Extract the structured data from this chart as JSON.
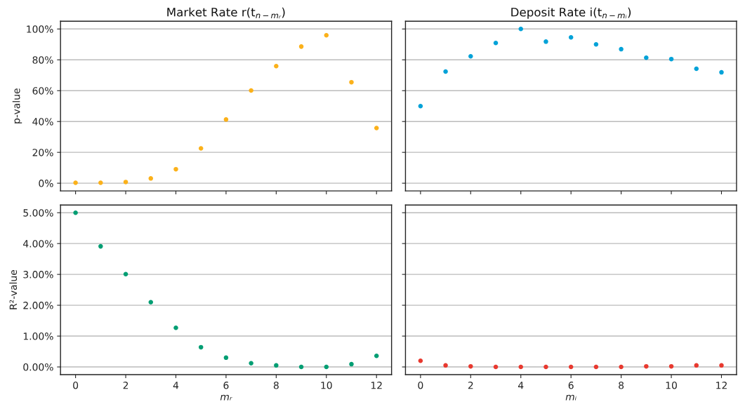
{
  "chart_data": [
    {
      "type": "scatter",
      "title": "Market Rate r(t$_{n−mᵣ}$)",
      "ylabel": "p-value",
      "x": [
        0,
        1,
        2,
        3,
        4,
        5,
        6,
        7,
        8,
        9,
        10,
        11,
        12
      ],
      "values": [
        0.3,
        0.3,
        0.8,
        3.1,
        9.1,
        22.6,
        41.3,
        60.1,
        75.9,
        88.6,
        95.9,
        65.5,
        35.8
      ],
      "color": "#fbb11a",
      "marker": "circle",
      "grid": "y",
      "tick_labels": "y",
      "xlim": [
        -0.6,
        12.6
      ],
      "xticks": [
        0,
        2,
        4,
        6,
        8,
        10,
        12
      ],
      "ylim": [
        -5,
        105
      ],
      "yticks": [
        {
          "value": 0,
          "label": "0%"
        },
        {
          "value": 20,
          "label": "20%"
        },
        {
          "value": 40,
          "label": "40%"
        },
        {
          "value": 60,
          "label": "60%"
        },
        {
          "value": 80,
          "label": "80%"
        },
        {
          "value": 100,
          "label": "100%"
        }
      ]
    },
    {
      "type": "scatter",
      "title": "Deposit Rate i(t$_{n−mᵢ}$)",
      "x": [
        0,
        1,
        2,
        3,
        4,
        5,
        6,
        7,
        8,
        9,
        10,
        11,
        12
      ],
      "values": [
        50.0,
        72.4,
        82.3,
        90.9,
        100,
        91.8,
        94.6,
        90.0,
        86.9,
        81.4,
        80.5,
        74.2,
        71.9
      ],
      "color": "#02a2d8",
      "marker": "circle",
      "grid": "y",
      "tick_labels": false,
      "xlim": [
        -0.6,
        12.6
      ],
      "xticks": [
        0,
        2,
        4,
        6,
        8,
        10,
        12
      ],
      "ylim": [
        -5,
        105
      ],
      "yticks": [
        0,
        20,
        40,
        60,
        80,
        100
      ]
    },
    {
      "type": "scatter",
      "ylabel": "R²-value",
      "xlabel": "mᵣ",
      "x": [
        0,
        1,
        2,
        3,
        4,
        5,
        6,
        7,
        8,
        9,
        10,
        11,
        12
      ],
      "values": [
        5.0,
        3.91,
        3.01,
        2.1,
        1.27,
        0.64,
        0.3,
        0.12,
        0.05,
        0.0,
        0.0,
        0.09,
        0.36
      ],
      "color": "#009e73",
      "marker": "circle",
      "grid": "y",
      "xlim": [
        -0.6,
        12.6
      ],
      "xticks": [
        0,
        2,
        4,
        6,
        8,
        10,
        12
      ],
      "ylim": [
        -0.25,
        5.25
      ],
      "yticks": [
        {
          "value": 0,
          "label": "0.00%"
        },
        {
          "value": 1,
          "label": "1.00%"
        },
        {
          "value": 2,
          "label": "2.00%"
        },
        {
          "value": 3,
          "label": "3.00%"
        },
        {
          "value": 4,
          "label": "4.00%"
        },
        {
          "value": 5,
          "label": "5.00%"
        }
      ]
    },
    {
      "type": "scatter",
      "xlabel": "mᵢ",
      "x": [
        0,
        1,
        2,
        3,
        4,
        5,
        6,
        7,
        8,
        9,
        10,
        11,
        12
      ],
      "values": [
        0.2,
        0.05,
        0.02,
        0.0,
        0.0,
        0.0,
        0.0,
        0.0,
        0.0,
        0.02,
        0.02,
        0.05,
        0.05
      ],
      "color": "#e8392f",
      "marker": "circle",
      "grid": "y",
      "tick_labels": "x",
      "xlim": [
        -0.6,
        12.6
      ],
      "xticks": [
        0,
        2,
        4,
        6,
        8,
        10,
        12
      ],
      "ylim": [
        -0.25,
        5.25
      ],
      "yticks": [
        0,
        1,
        2,
        3,
        4,
        5
      ]
    }
  ]
}
